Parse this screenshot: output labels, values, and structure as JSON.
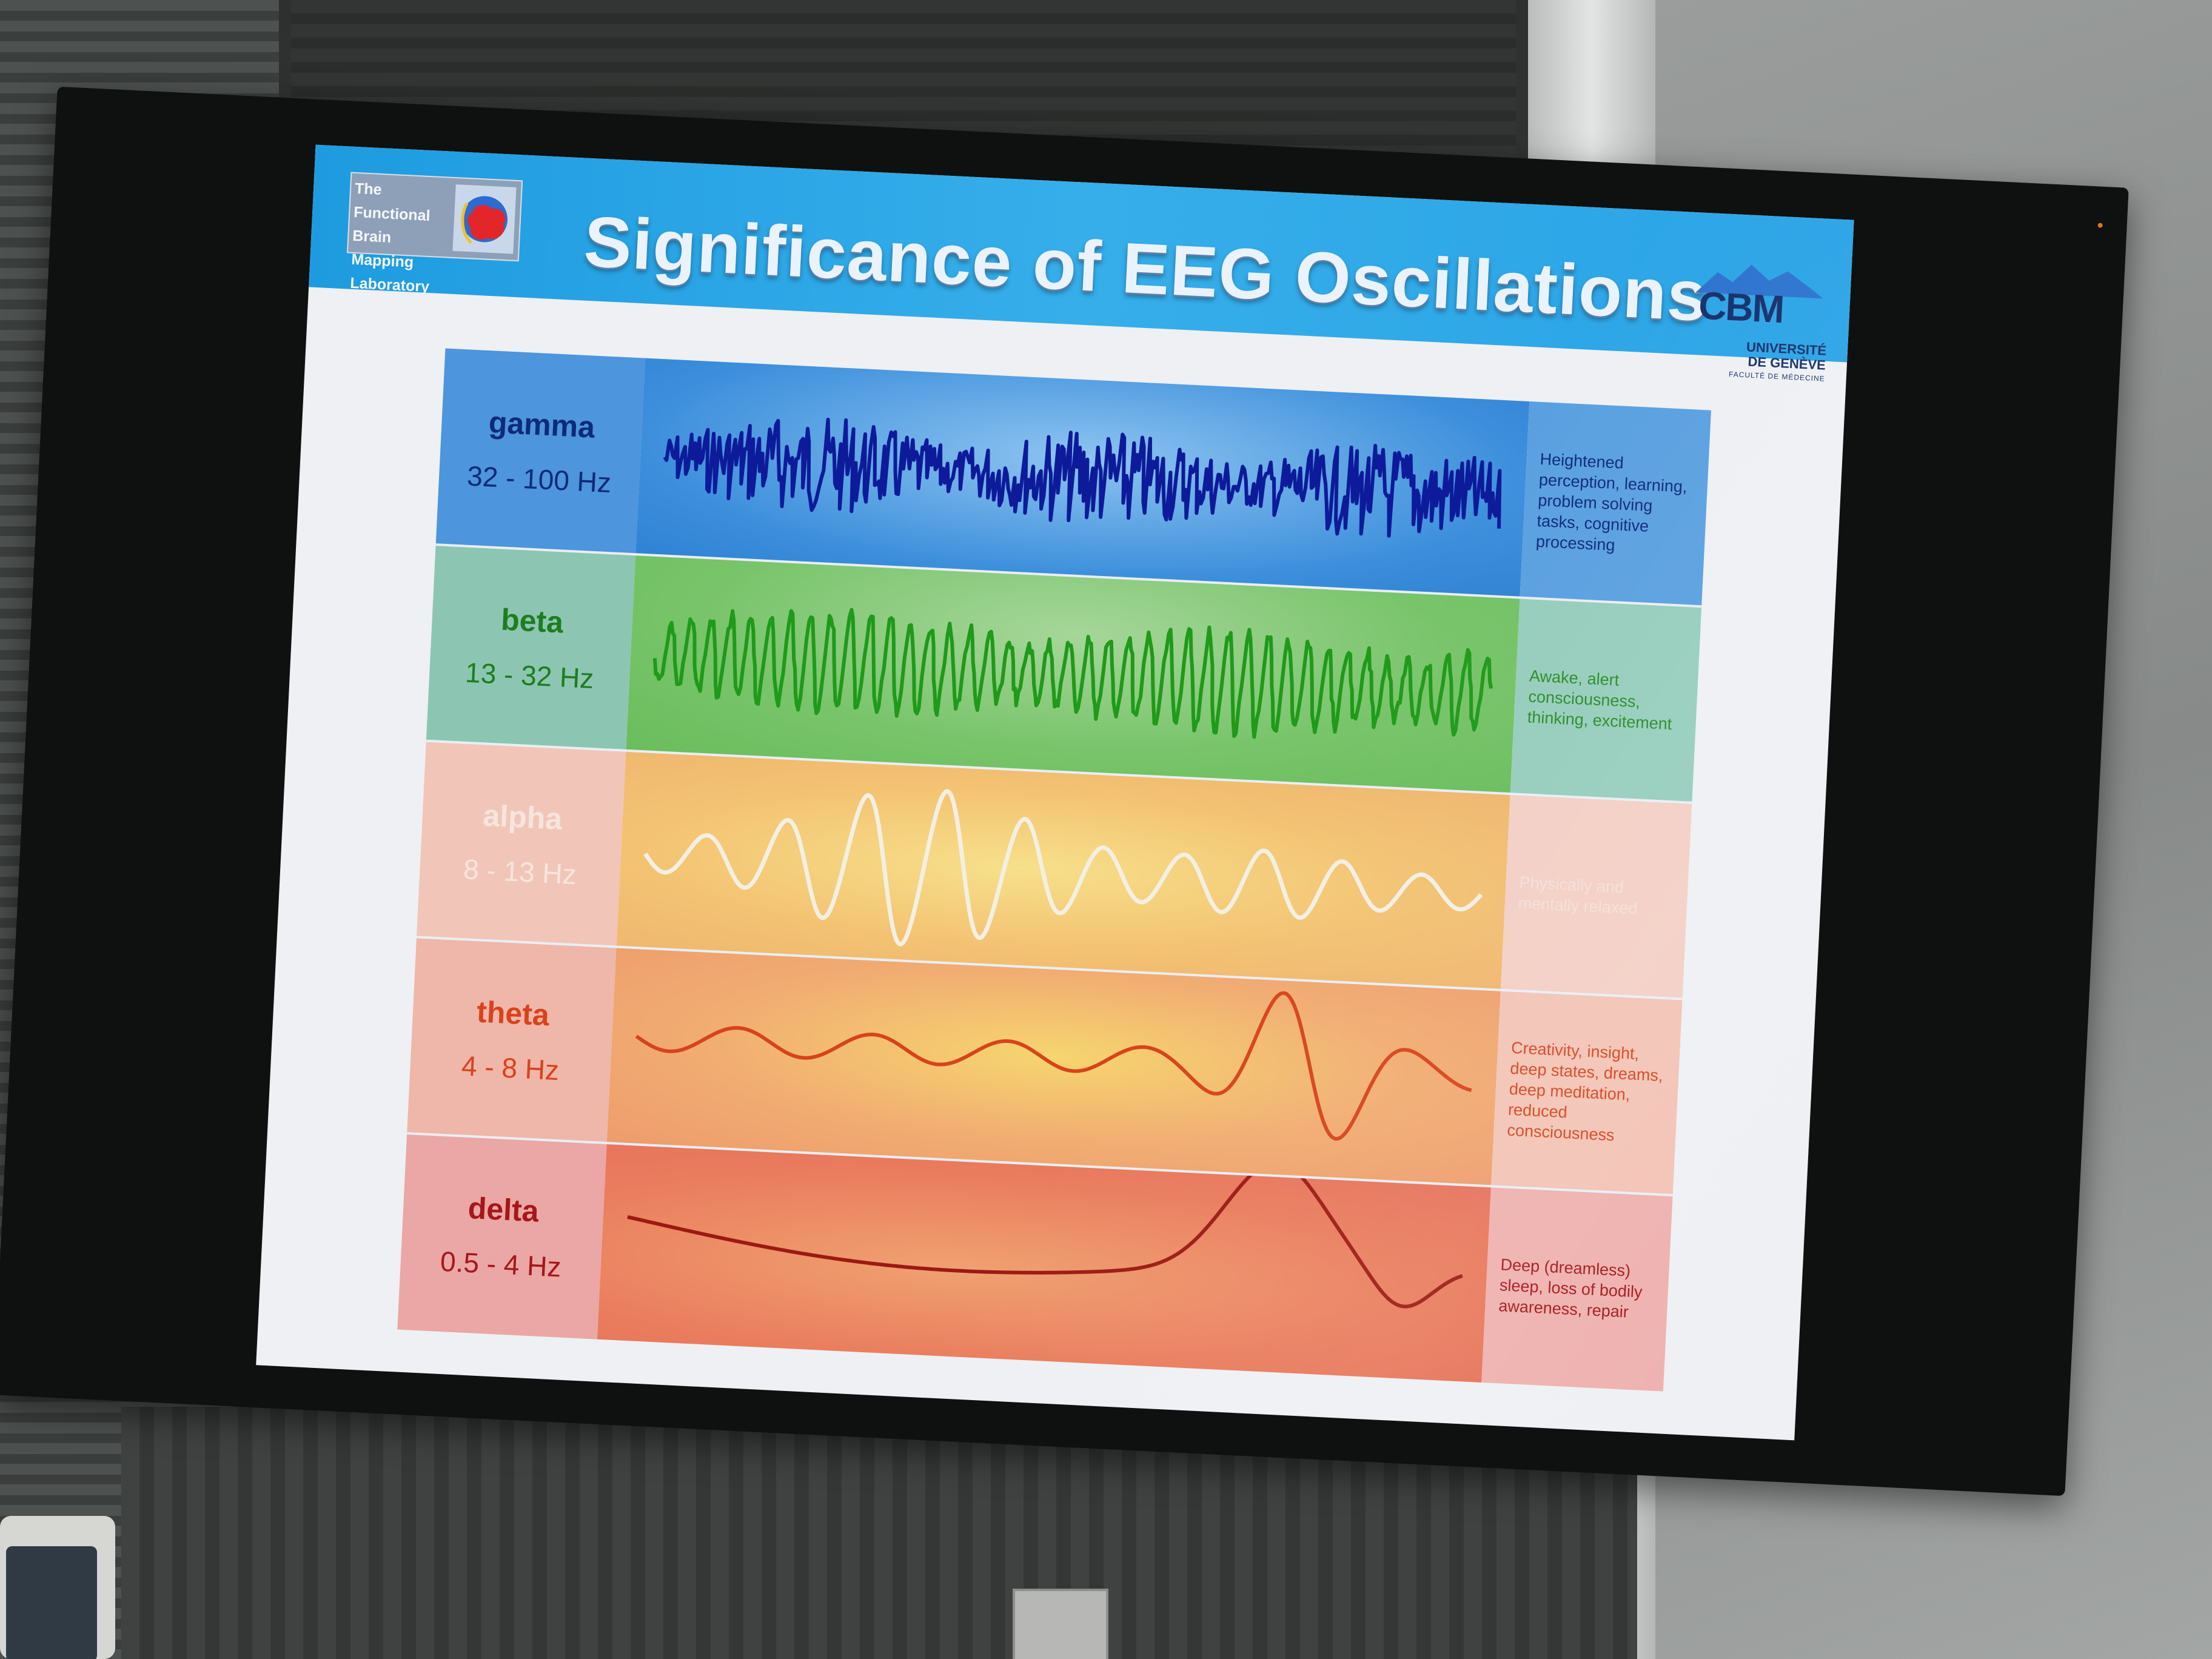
{
  "slide": {
    "title": "Significance of EEG Oscillations",
    "lab_logo": [
      "The Functional",
      "Brain Mapping",
      "Laboratory"
    ],
    "cbm_logo": {
      "acronym": "CBM",
      "university": [
        "UNIVERSITÉ",
        "DE GENÈVE"
      ],
      "faculty": "FACULTÉ DE MÉDECINE"
    }
  },
  "bands": [
    {
      "name": "gamma",
      "freq": "32 - 100 Hz",
      "description": "Heightened perception, learning, problem solving tasks, cognitive processing",
      "wave_color": "#0d1b9a"
    },
    {
      "name": "beta",
      "freq": "13 - 32 Hz",
      "description": "Awake, alert consciousness, thinking, excitement",
      "wave_color": "#1f9a1a"
    },
    {
      "name": "alpha",
      "freq": "8 - 13 Hz",
      "description": "Physically and mentally relaxed",
      "wave_color": "#f4efe3"
    },
    {
      "name": "theta",
      "freq": "4 - 8 Hz",
      "description": "Creativity, insight, deep states, dreams, deep meditation, reduced consciousness",
      "wave_color": "#d8431b"
    },
    {
      "name": "delta",
      "freq": "0.5 - 4 Hz",
      "description": "Deep (dreamless) sleep, loss of bodily awareness, repair",
      "wave_color": "#9c1a12"
    }
  ]
}
